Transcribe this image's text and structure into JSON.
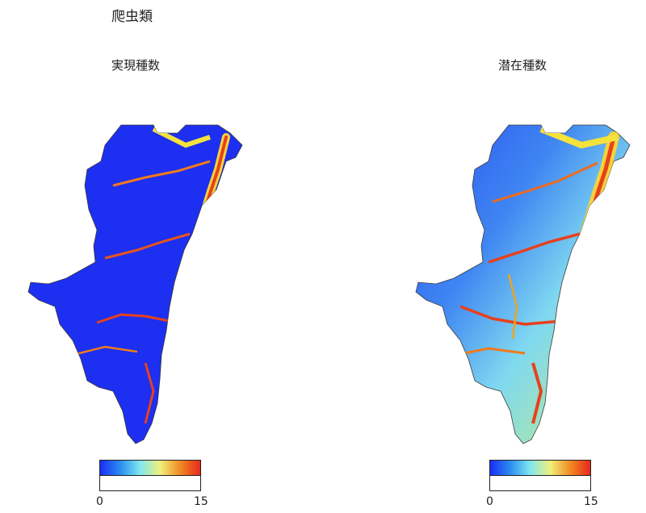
{
  "title": "爬虫類",
  "maps": [
    {
      "subtitle": "実現種数",
      "scale_min": "0",
      "scale_max": "15",
      "colormap": "jet",
      "base_color": "#1d2ff0"
    },
    {
      "subtitle": "潜在種数",
      "scale_min": "0",
      "scale_max": "15",
      "colormap": "jet",
      "base_color": "#3d7cf5"
    }
  ],
  "colorbar": {
    "stops": [
      "#1b2df5",
      "#2a8cf0",
      "#7fe8f0",
      "#f0f07a",
      "#f08a22",
      "#e8281c"
    ]
  }
}
